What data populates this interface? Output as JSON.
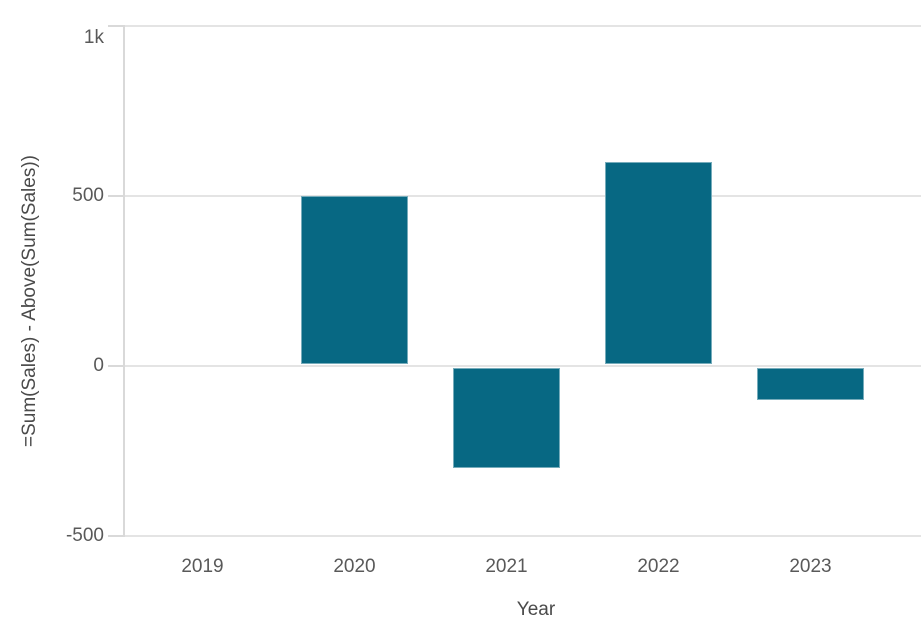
{
  "chart_data": {
    "type": "bar",
    "title": "",
    "xlabel": "Year",
    "ylabel": "=Sum(Sales) - Above(Sum(Sales))",
    "categories": [
      "2019",
      "2020",
      "2021",
      "2022",
      "2023"
    ],
    "values": [
      0,
      500,
      -300,
      600,
      -100
    ],
    "ylim": [
      -500,
      1000
    ],
    "yticks": [
      {
        "value": 1000,
        "label": "1k"
      },
      {
        "value": 500,
        "label": "500"
      },
      {
        "value": 0,
        "label": "0"
      },
      {
        "value": -500,
        "label": "-500"
      }
    ],
    "grid": true,
    "legend": false
  },
  "colors": {
    "bar": "#076883",
    "bar_border": "rgba(255,255,255,0.45)",
    "gridline": "#e4e4e4",
    "axis_line": "#d9d9d9",
    "tick_label": "#595959",
    "axis_title": "#4a4a4a",
    "background": "#ffffff"
  }
}
